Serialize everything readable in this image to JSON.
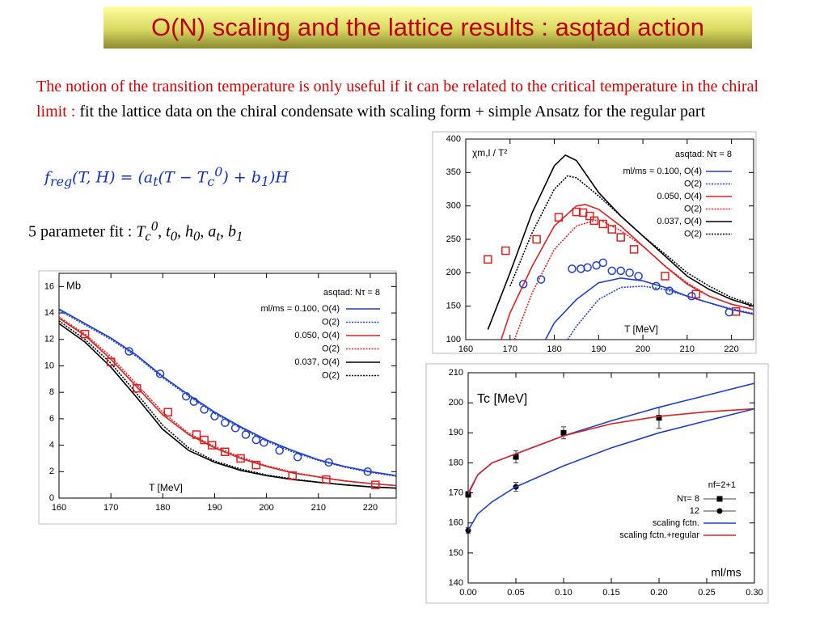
{
  "title": "O(N) scaling and the lattice results : asqtad action",
  "intro": {
    "highlight": "The notion of the transition temperature is only useful if it can be related to the critical temperature in the chiral limit : ",
    "rest": "fit the lattice data on the chiral condensate with scaling form + simple Ansatz for the regular part"
  },
  "formula": [
    "f",
    "reg",
    "(T, H) = (a",
    "t",
    "(T − T",
    "c",
    "0",
    ") + b",
    "1",
    ")H"
  ],
  "fit": [
    "5 parameter fit : ",
    "T",
    "c",
    "0",
    ", ",
    "t",
    "0",
    ", ",
    "h",
    "0",
    ", ",
    "a",
    "t",
    ", ",
    "b",
    "1"
  ],
  "chart_data": [
    {
      "type": "line",
      "ylabel": "Mb",
      "xlabel": "T [MeV]",
      "legend_title": "asqtad: Nτ = 8",
      "xlim": [
        160,
        225
      ],
      "ylim": [
        0,
        17
      ],
      "xticks": [
        160,
        170,
        180,
        190,
        200,
        210,
        220
      ],
      "yticks": [
        0,
        2,
        4,
        6,
        8,
        10,
        12,
        14,
        16
      ],
      "series": [
        {
          "name": "ml/ms = 0.100, O(4)",
          "color": "#1f3fd0",
          "style": "solid",
          "x": [
            160,
            165,
            170,
            175,
            180,
            185,
            190,
            195,
            200,
            205,
            210,
            215,
            220,
            225
          ],
          "values": [
            14.3,
            13.2,
            12.1,
            10.8,
            9.2,
            7.8,
            6.5,
            5.4,
            4.4,
            3.6,
            2.9,
            2.4,
            2.0,
            1.7
          ]
        },
        {
          "name": "O(2)",
          "color": "#1f3fd0",
          "style": "dotted",
          "x": [
            160,
            165,
            170,
            175,
            180,
            185,
            190,
            195,
            200,
            205,
            210,
            215,
            220,
            225
          ],
          "values": [
            14.2,
            13.1,
            12.0,
            10.7,
            9.1,
            7.7,
            6.4,
            5.3,
            4.3,
            3.5,
            2.85,
            2.35,
            1.95,
            1.65
          ]
        },
        {
          "name": "0.050, O(4)",
          "color": "#e02020",
          "style": "solid",
          "x": [
            160,
            165,
            170,
            175,
            180,
            185,
            190,
            195,
            200,
            205,
            210,
            215,
            220,
            225
          ],
          "values": [
            13.6,
            12.3,
            10.5,
            8.4,
            6.3,
            4.8,
            3.8,
            3.0,
            2.4,
            1.9,
            1.6,
            1.3,
            1.1,
            0.95
          ]
        },
        {
          "name": "O(2)",
          "color": "#e02020",
          "style": "dotted",
          "x": [
            160,
            165,
            170,
            175,
            180,
            185,
            190,
            195,
            200,
            205,
            210,
            215,
            220,
            225
          ],
          "values": [
            13.7,
            12.4,
            10.7,
            8.6,
            6.5,
            4.9,
            3.9,
            3.1,
            2.45,
            1.95,
            1.6,
            1.3,
            1.1,
            0.95
          ]
        },
        {
          "name": "0.037, O(4)",
          "color": "#000000",
          "style": "solid",
          "x": [
            160,
            165,
            170,
            175,
            180,
            185,
            190,
            195,
            200,
            205,
            210,
            215,
            220,
            225
          ],
          "values": [
            13.2,
            11.8,
            9.9,
            7.6,
            5.2,
            3.6,
            2.7,
            2.1,
            1.7,
            1.4,
            1.2,
            1.0,
            0.85,
            0.75
          ]
        },
        {
          "name": "O(2)",
          "color": "#000000",
          "style": "dotted",
          "x": [
            160,
            165,
            170,
            175,
            180,
            185,
            190,
            195,
            200,
            205,
            210,
            215,
            220,
            225
          ],
          "values": [
            13.4,
            12.0,
            10.2,
            7.9,
            5.5,
            3.8,
            2.8,
            2.2,
            1.75,
            1.45,
            1.2,
            1.0,
            0.85,
            0.75
          ]
        },
        {
          "color": "#1f3fd0",
          "marker": "circle",
          "x": [
            173.5,
            179.5,
            184.5,
            186,
            188,
            190,
            192,
            194,
            196,
            198,
            199.5,
            202.5,
            206,
            212,
            219.5
          ],
          "values": [
            11.1,
            9.4,
            7.7,
            7.3,
            6.7,
            6.2,
            5.7,
            5.3,
            4.8,
            4.4,
            4.2,
            3.6,
            3.1,
            2.7,
            2.0
          ]
        },
        {
          "color": "#e02020",
          "marker": "square",
          "x": [
            165,
            170,
            175,
            181,
            186.5,
            188,
            189.5,
            192,
            195,
            198,
            205,
            211.5,
            221
          ],
          "values": [
            12.4,
            10.3,
            8.3,
            6.5,
            4.8,
            4.4,
            4.0,
            3.5,
            3.0,
            2.5,
            1.7,
            1.4,
            1.0
          ]
        }
      ]
    },
    {
      "type": "line",
      "ylabel": "χm,l / T²",
      "xlabel": "T [MeV]",
      "legend_title": "asqtad: Nτ = 8",
      "xlim": [
        160,
        225
      ],
      "ylim": [
        100,
        400
      ],
      "xticks": [
        160,
        170,
        180,
        190,
        200,
        210,
        220
      ],
      "yticks": [
        100,
        150,
        200,
        250,
        300,
        350,
        400
      ],
      "series": [
        {
          "name": "ml/ms = 0.100, O(4)",
          "color": "#1f3fd0",
          "style": "solid",
          "x": [
            178,
            180,
            185,
            190,
            195,
            200,
            205,
            210,
            215,
            220,
            225
          ],
          "values": [
            100,
            125,
            160,
            185,
            192,
            188,
            178,
            165,
            155,
            145,
            138
          ]
        },
        {
          "name": "O(2)",
          "color": "#1f3fd0",
          "style": "dotted",
          "x": [
            183,
            185,
            190,
            195,
            200,
            205,
            210,
            215,
            220,
            225
          ],
          "values": [
            100,
            120,
            160,
            178,
            180,
            175,
            165,
            155,
            146,
            139
          ]
        },
        {
          "name": "0.050, O(4)",
          "color": "#e02020",
          "style": "solid",
          "x": [
            168,
            170,
            175,
            180,
            185,
            187,
            190,
            195,
            200,
            205,
            210,
            215,
            220,
            225
          ],
          "values": [
            100,
            140,
            210,
            270,
            300,
            302,
            295,
            270,
            240,
            210,
            183,
            165,
            153,
            145
          ]
        },
        {
          "name": "O(2)",
          "color": "#e02020",
          "style": "dotted",
          "x": [
            171,
            175,
            180,
            185,
            190,
            195,
            200,
            205,
            210,
            215,
            220,
            225
          ],
          "values": [
            100,
            170,
            235,
            270,
            280,
            263,
            240,
            210,
            185,
            165,
            153,
            145
          ]
        },
        {
          "name": "0.037, O(4)",
          "color": "#000000",
          "style": "solid",
          "x": [
            165,
            170,
            175,
            180,
            182.5,
            185,
            190,
            195,
            200,
            205,
            210,
            215,
            220,
            225
          ],
          "values": [
            115,
            200,
            290,
            360,
            376,
            368,
            320,
            285,
            255,
            225,
            195,
            175,
            160,
            150
          ]
        },
        {
          "name": "O(2)",
          "color": "#000000",
          "style": "dotted",
          "x": [
            170,
            175,
            180,
            183,
            185,
            190,
            195,
            200,
            205,
            210,
            215,
            220,
            225
          ],
          "values": [
            180,
            260,
            325,
            345,
            342,
            315,
            285,
            255,
            228,
            200,
            180,
            163,
            152
          ]
        },
        {
          "color": "#e02020",
          "marker": "square",
          "x": [
            165,
            169,
            176,
            181,
            185,
            186.5,
            188,
            189,
            191,
            193,
            195,
            198,
            205,
            212,
            221
          ],
          "values": [
            220,
            233,
            250,
            283,
            291,
            290,
            285,
            278,
            273,
            265,
            253,
            235,
            195,
            168,
            142
          ]
        },
        {
          "color": "#1f3fd0",
          "marker": "circle",
          "x": [
            173,
            177,
            184,
            186,
            187.5,
            189.5,
            191,
            193,
            195,
            197,
            199,
            203,
            206,
            211,
            219.5
          ],
          "values": [
            183,
            190,
            206,
            206,
            208,
            211,
            215,
            203,
            203,
            200,
            195,
            180,
            173,
            165,
            141
          ]
        }
      ]
    },
    {
      "type": "line",
      "ylabel": "Tc [MeV]",
      "xlabel": "ml/ms",
      "legend_title": "nf=2+1",
      "xlim": [
        0,
        0.3
      ],
      "ylim": [
        140,
        210
      ],
      "xticks": [
        {
          "value": 0,
          "label": "0.00"
        },
        {
          "value": 0.05,
          "label": "0.05"
        },
        {
          "value": 0.1,
          "label": "0.10"
        },
        {
          "value": 0.15,
          "label": "0.15"
        },
        {
          "value": 0.2,
          "label": "0.20"
        },
        {
          "value": 0.25,
          "label": "0.25"
        },
        {
          "value": 0.3,
          "label": "0.30"
        }
      ],
      "yticks": [
        140,
        150,
        160,
        170,
        180,
        190,
        200,
        210
      ],
      "series": [
        {
          "name": "Nτ= 8",
          "color": "#000000",
          "marker": "filled-square",
          "x": [
            0,
            0.05,
            0.1,
            0.2
          ],
          "values": [
            169.5,
            182,
            190,
            195
          ],
          "errors": [
            1,
            2,
            2,
            3.5
          ]
        },
        {
          "name": "12",
          "color": "#000000",
          "marker": "filled-circle",
          "x": [
            0,
            0.05
          ],
          "values": [
            157.5,
            172
          ],
          "errors": [
            1,
            1.5
          ]
        },
        {
          "name": "scaling fctn.",
          "color": "#1f3fd0",
          "style": "solid",
          "x": [
            0,
            0.01,
            0.025,
            0.05,
            0.1,
            0.15,
            0.2,
            0.25,
            0.3
          ],
          "values": [
            169.5,
            176,
            180,
            183,
            189,
            194,
            198.5,
            202.5,
            206.5
          ]
        },
        {
          "name": "scaling fctn.+regular",
          "color": "#e02020",
          "style": "solid",
          "x": [
            0,
            0.01,
            0.025,
            0.05,
            0.1,
            0.15,
            0.2,
            0.25,
            0.3
          ],
          "values": [
            170,
            176,
            180,
            183,
            189,
            193,
            195.5,
            197,
            198
          ]
        },
        {
          "color": "#1f3fd0",
          "style": "solid",
          "x": [
            0,
            0.01,
            0.025,
            0.05,
            0.1,
            0.15,
            0.2,
            0.25,
            0.3
          ],
          "values": [
            157.5,
            163,
            167,
            172,
            179,
            185,
            190,
            194,
            198
          ]
        }
      ]
    }
  ]
}
